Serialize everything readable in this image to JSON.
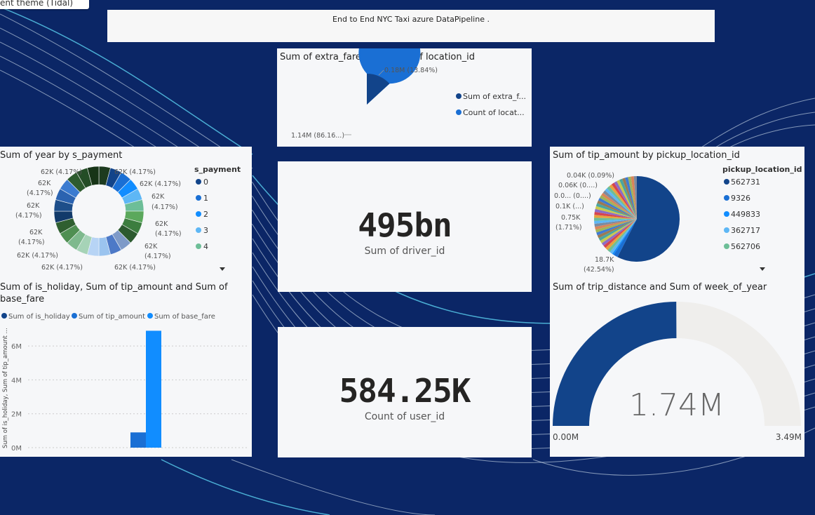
{
  "theme_tab": "ent theme (Tidal)",
  "banner": {
    "title": "End to End NYC Taxi azure DataPipeline ."
  },
  "visuals": {
    "extra_fare": {
      "title": "Sum of extra_fare and Count of location_id",
      "labels": [
        "0.18M (13.84%)",
        "1.14M (86.16...)"
      ],
      "legend": [
        "Sum of extra_f...",
        "Count of locat..."
      ]
    },
    "payment": {
      "title": "Sum of year by s_payment",
      "legend_title": "s_payment",
      "legend": [
        "0",
        "1",
        "2",
        "3",
        "4"
      ],
      "labels": [
        "62K (4.17%)",
        "62K (4.17%)",
        "62K (4.17%)",
        "62K",
        "(4.17%)",
        "62K",
        "(4.17%)",
        "62K",
        "(4.17%)",
        "62K",
        "(4.17%)",
        "62K",
        "(4.17%)",
        "62K",
        "(4.17%)",
        "62K (4.17%)",
        "62K (4.17%)",
        "62K (4.17%)"
      ]
    },
    "driver": {
      "value": "495bn",
      "label": "Sum of driver_id"
    },
    "user": {
      "value": "584.25K",
      "label": "Count of user_id"
    },
    "tip_pickup": {
      "title": "Sum of tip_amount by pickup_location_id",
      "legend_title": "pickup_location_id",
      "legend": [
        "562731",
        "9326",
        "449833",
        "362717",
        "562706"
      ],
      "labels": [
        "0.04K (0.09%)",
        "0.06K (0....)",
        "0.0... (0....)",
        "0.1K (...)",
        "0.75K",
        "(1.71%)",
        "18.7K",
        "(42.54%)"
      ]
    },
    "holiday": {
      "title_line1": "Sum of is_holiday, Sum of tip_amount and Sum of",
      "title_line2": "base_fare",
      "legend": [
        "Sum of is_holiday",
        "Sum of tip_amount",
        "Sum of base_fare"
      ],
      "y_axis_label": "Sum of is_holiday, Sum of tip_amount ...",
      "y_ticks": [
        "6M",
        "4M",
        "2M",
        "0M"
      ]
    },
    "gauge": {
      "title": "Sum of trip_distance and Sum of week_of_year",
      "value": "1.74M",
      "min": "0.00M",
      "max": "3.49M"
    }
  },
  "chart_data": [
    {
      "type": "pie",
      "title": "Sum of extra_fare and Count of location_id",
      "categories": [
        "Sum of extra_fare",
        "Count of location_id"
      ],
      "values": [
        0.18,
        1.14
      ],
      "unit": "M"
    },
    {
      "type": "pie",
      "title": "Sum of year by s_payment",
      "legend_title": "s_payment",
      "categories": [
        "0",
        "1",
        "2",
        "3",
        "4"
      ],
      "slice_value": 62,
      "slice_percent": 4.17,
      "slice_count": 24,
      "unit": "K"
    },
    {
      "type": "pie",
      "title": "Sum of tip_amount by pickup_location_id",
      "legend_title": "pickup_location_id",
      "categories": [
        "562731",
        "9326",
        "449833",
        "362717",
        "562706"
      ],
      "major_value": 18.7,
      "major_percent": 42.54,
      "unit": "K"
    },
    {
      "type": "bar",
      "title": "Sum of is_holiday, Sum of tip_amount and Sum of base_fare",
      "series": [
        {
          "name": "Sum of is_holiday",
          "values": [
            0
          ]
        },
        {
          "name": "Sum of tip_amount",
          "values": [
            0.9
          ]
        },
        {
          "name": "Sum of base_fare",
          "values": [
            6.9
          ]
        }
      ],
      "ylim": [
        0,
        7
      ],
      "unit": "M"
    },
    {
      "type": "gauge",
      "title": "Sum of trip_distance and Sum of week_of_year",
      "value": 1.74,
      "min": 0,
      "max": 3.49,
      "unit": "M"
    }
  ],
  "colors": {
    "background": "#0b2666",
    "card": "#f6f7f9",
    "navy": "#12448a",
    "blue": "#118dff",
    "mid_blue": "#1a6fd4",
    "gauge_track": "#efeeec"
  }
}
